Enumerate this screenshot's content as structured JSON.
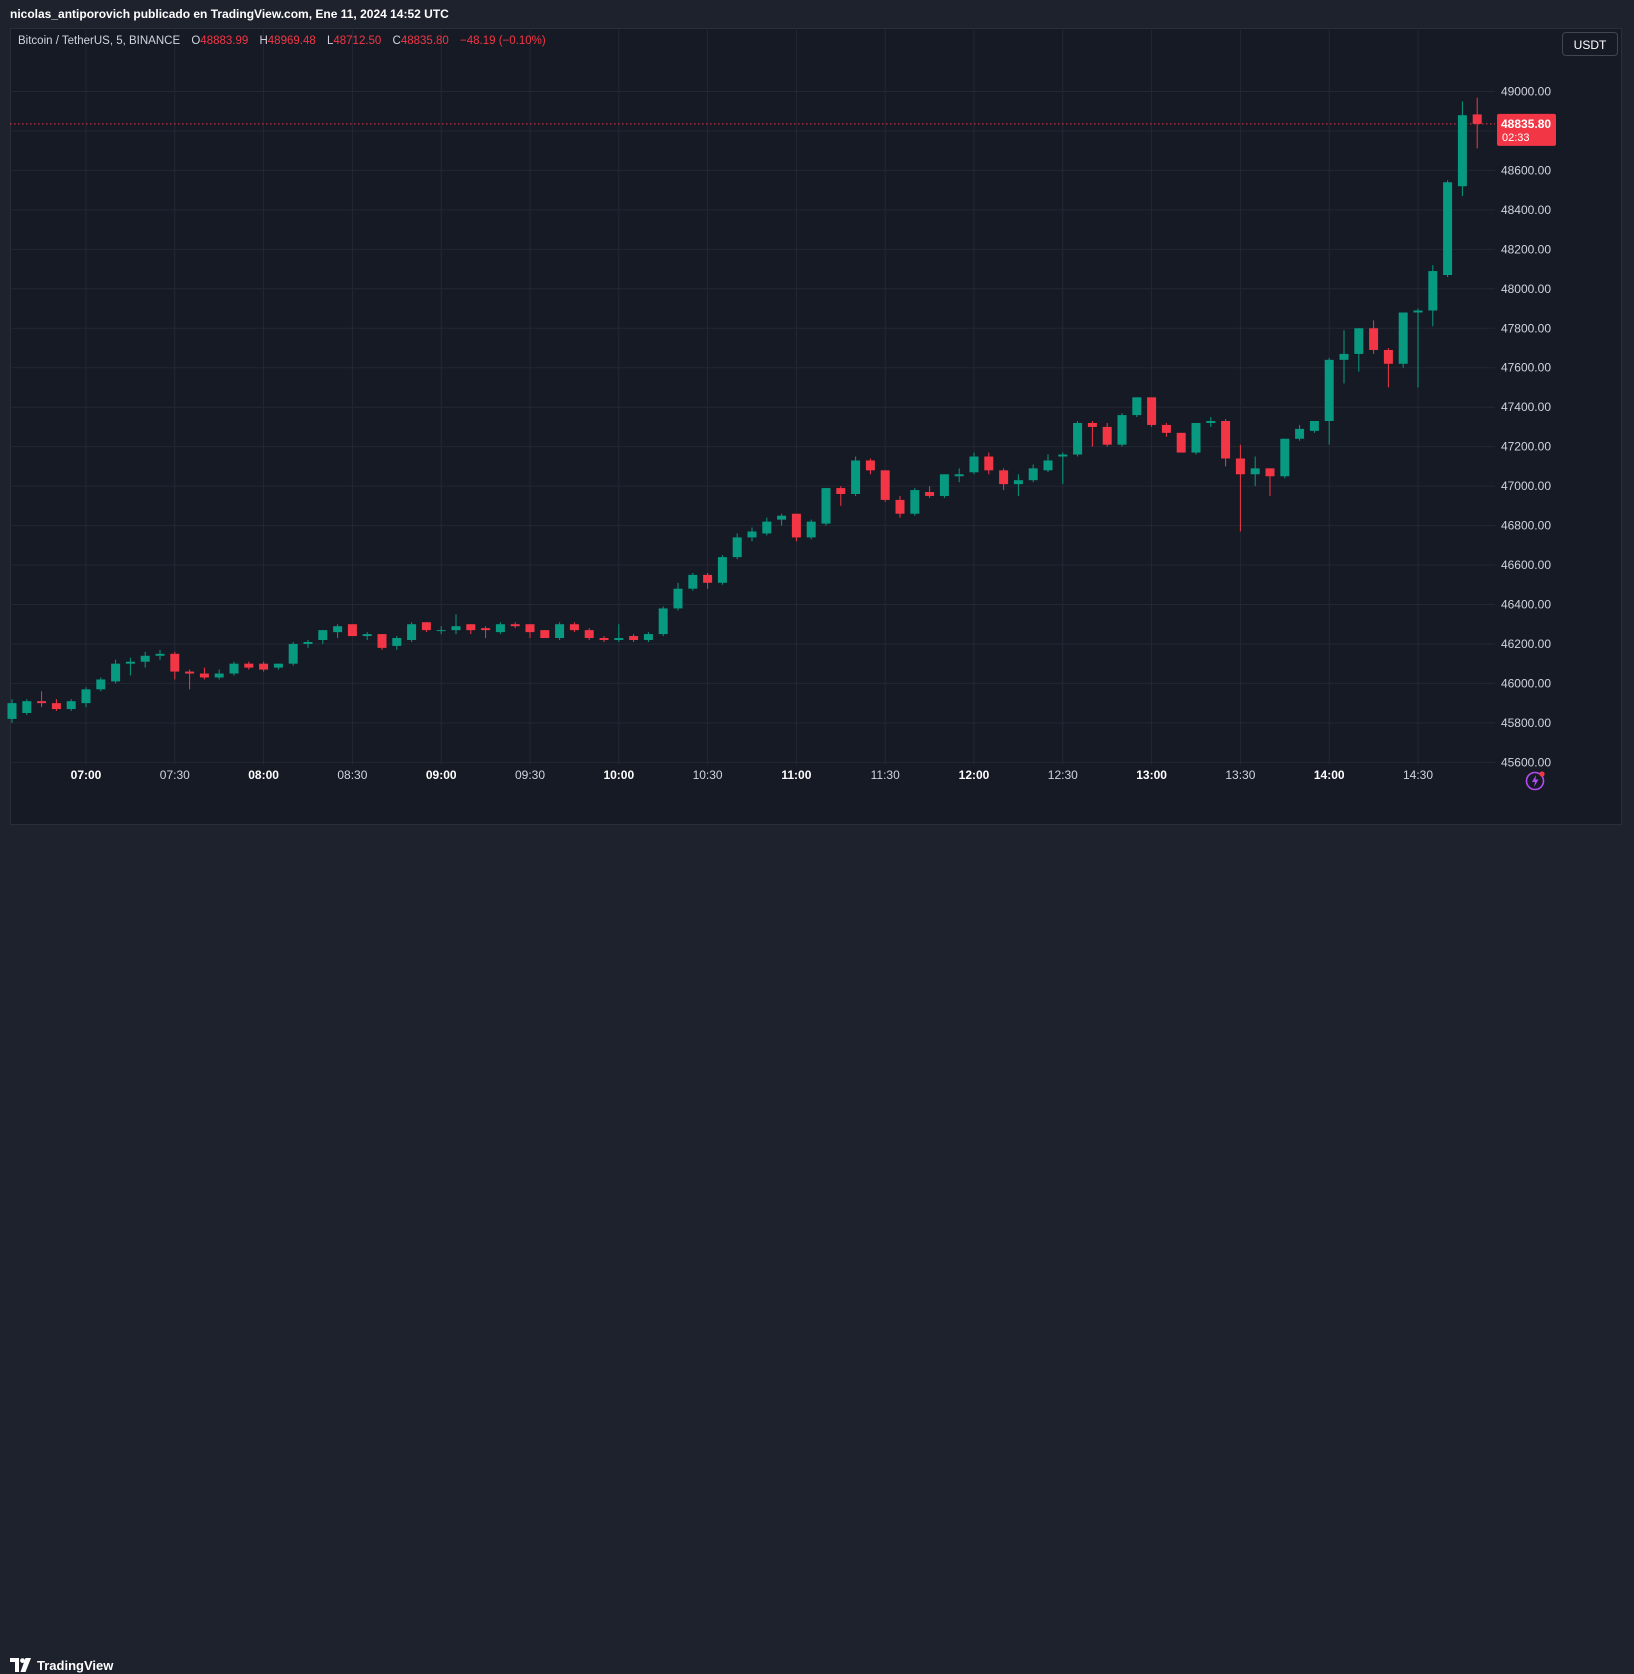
{
  "header": {
    "published": "nicolas_antiporovich publicado en TradingView.com, Ene 11, 2024 14:52 UTC"
  },
  "legend": {
    "symbol": "Bitcoin / TetherUS, 5, BINANCE",
    "o_label": "O",
    "o_value": "48883.99",
    "h_label": "H",
    "h_value": "48969.48",
    "l_label": "L",
    "l_value": "48712.50",
    "c_label": "C",
    "c_value": "48835.80",
    "change": "−48.19 (−0.10%)"
  },
  "currency_button": "USDT",
  "price_tag": {
    "price": "48835.80",
    "countdown": "02:33"
  },
  "footer": {
    "brand": "TradingView"
  },
  "icons": {
    "logo": "tradingview-logo-icon",
    "flash": "lightning-icon"
  },
  "colors": {
    "up": "#089981",
    "down": "#f23645",
    "background": "#161a25",
    "grid": "#232734",
    "text": "#d1d4dc"
  },
  "chart_data": {
    "type": "candlestick",
    "symbol": "BTC/USDT",
    "interval_minutes": 5,
    "exchange": "BINANCE",
    "last_price": 48835.8,
    "ylim": [
      45480,
      49180
    ],
    "y_ticks": [
      45600,
      45800,
      46000,
      46200,
      46400,
      46600,
      46800,
      47000,
      47200,
      47400,
      47600,
      47800,
      48000,
      48200,
      48400,
      48600,
      48800,
      49000
    ],
    "y_tick_labels": [
      "45600.00",
      "45800.00",
      "46000.00",
      "46200.00",
      "46400.00",
      "46600.00",
      "46800.00",
      "47000.00",
      "47200.00",
      "47400.00",
      "47600.00",
      "47800.00",
      "48000.00",
      "48200.00",
      "48400.00",
      "48600.00",
      "48800.00",
      "49000.00"
    ],
    "x_ticks": [
      "07:00",
      "07:30",
      "08:00",
      "08:30",
      "09:00",
      "09:30",
      "10:00",
      "10:30",
      "11:00",
      "11:30",
      "12:00",
      "12:30",
      "13:00",
      "13:30",
      "14:00",
      "14:30"
    ],
    "x_tick_index": [
      5,
      11,
      17,
      23,
      29,
      35,
      41,
      47,
      53,
      59,
      65,
      71,
      77,
      83,
      89,
      95
    ],
    "candles": [
      {
        "o": 45820,
        "h": 45920,
        "l": 45800,
        "c": 45900
      },
      {
        "o": 45850,
        "h": 45920,
        "l": 45840,
        "c": 45910
      },
      {
        "o": 45910,
        "h": 45960,
        "l": 45880,
        "c": 45900
      },
      {
        "o": 45900,
        "h": 45920,
        "l": 45860,
        "c": 45870
      },
      {
        "o": 45870,
        "h": 45920,
        "l": 45860,
        "c": 45910
      },
      {
        "o": 45900,
        "h": 45980,
        "l": 45880,
        "c": 45970
      },
      {
        "o": 45970,
        "h": 46030,
        "l": 45960,
        "c": 46020
      },
      {
        "o": 46010,
        "h": 46120,
        "l": 46000,
        "c": 46100
      },
      {
        "o": 46100,
        "h": 46130,
        "l": 46040,
        "c": 46110
      },
      {
        "o": 46110,
        "h": 46160,
        "l": 46080,
        "c": 46140
      },
      {
        "o": 46140,
        "h": 46170,
        "l": 46120,
        "c": 46150
      },
      {
        "o": 46150,
        "h": 46160,
        "l": 46020,
        "c": 46060
      },
      {
        "o": 46060,
        "h": 46070,
        "l": 45970,
        "c": 46050
      },
      {
        "o": 46050,
        "h": 46080,
        "l": 46020,
        "c": 46030
      },
      {
        "o": 46030,
        "h": 46070,
        "l": 46020,
        "c": 46050
      },
      {
        "o": 46050,
        "h": 46110,
        "l": 46040,
        "c": 46100
      },
      {
        "o": 46100,
        "h": 46110,
        "l": 46070,
        "c": 46080
      },
      {
        "o": 46100,
        "h": 46110,
        "l": 46060,
        "c": 46070
      },
      {
        "o": 46080,
        "h": 46100,
        "l": 46070,
        "c": 46100
      },
      {
        "o": 46100,
        "h": 46210,
        "l": 46090,
        "c": 46200
      },
      {
        "o": 46200,
        "h": 46220,
        "l": 46180,
        "c": 46210
      },
      {
        "o": 46220,
        "h": 46270,
        "l": 46200,
        "c": 46270
      },
      {
        "o": 46260,
        "h": 46300,
        "l": 46230,
        "c": 46290
      },
      {
        "o": 46300,
        "h": 46300,
        "l": 46240,
        "c": 46240
      },
      {
        "o": 46240,
        "h": 46260,
        "l": 46220,
        "c": 46250
      },
      {
        "o": 46250,
        "h": 46250,
        "l": 46170,
        "c": 46180
      },
      {
        "o": 46190,
        "h": 46240,
        "l": 46170,
        "c": 46230
      },
      {
        "o": 46220,
        "h": 46310,
        "l": 46210,
        "c": 46300
      },
      {
        "o": 46310,
        "h": 46310,
        "l": 46260,
        "c": 46270
      },
      {
        "o": 46270,
        "h": 46290,
        "l": 46250,
        "c": 46270
      },
      {
        "o": 46270,
        "h": 46350,
        "l": 46250,
        "c": 46290
      },
      {
        "o": 46300,
        "h": 46300,
        "l": 46250,
        "c": 46270
      },
      {
        "o": 46280,
        "h": 46290,
        "l": 46230,
        "c": 46270
      },
      {
        "o": 46260,
        "h": 46310,
        "l": 46250,
        "c": 46300
      },
      {
        "o": 46300,
        "h": 46310,
        "l": 46280,
        "c": 46290
      },
      {
        "o": 46300,
        "h": 46300,
        "l": 46230,
        "c": 46260
      },
      {
        "o": 46270,
        "h": 46270,
        "l": 46230,
        "c": 46230
      },
      {
        "o": 46230,
        "h": 46310,
        "l": 46220,
        "c": 46300
      },
      {
        "o": 46300,
        "h": 46310,
        "l": 46260,
        "c": 46270
      },
      {
        "o": 46270,
        "h": 46280,
        "l": 46220,
        "c": 46230
      },
      {
        "o": 46230,
        "h": 46240,
        "l": 46210,
        "c": 46220
      },
      {
        "o": 46220,
        "h": 46300,
        "l": 46210,
        "c": 46230
      },
      {
        "o": 46240,
        "h": 46250,
        "l": 46210,
        "c": 46220
      },
      {
        "o": 46220,
        "h": 46260,
        "l": 46210,
        "c": 46250
      },
      {
        "o": 46250,
        "h": 46390,
        "l": 46240,
        "c": 46380
      },
      {
        "o": 46380,
        "h": 46510,
        "l": 46370,
        "c": 46480
      },
      {
        "o": 46480,
        "h": 46560,
        "l": 46470,
        "c": 46550
      },
      {
        "o": 46550,
        "h": 46560,
        "l": 46480,
        "c": 46510
      },
      {
        "o": 46510,
        "h": 46650,
        "l": 46500,
        "c": 46640
      },
      {
        "o": 46640,
        "h": 46760,
        "l": 46630,
        "c": 46740
      },
      {
        "o": 46740,
        "h": 46790,
        "l": 46720,
        "c": 46770
      },
      {
        "o": 46760,
        "h": 46840,
        "l": 46750,
        "c": 46820
      },
      {
        "o": 46830,
        "h": 46860,
        "l": 46800,
        "c": 46850
      },
      {
        "o": 46860,
        "h": 46860,
        "l": 46720,
        "c": 46740
      },
      {
        "o": 46740,
        "h": 46830,
        "l": 46730,
        "c": 46820
      },
      {
        "o": 46810,
        "h": 46990,
        "l": 46800,
        "c": 46990
      },
      {
        "o": 46990,
        "h": 47000,
        "l": 46900,
        "c": 46960
      },
      {
        "o": 46960,
        "h": 47150,
        "l": 46950,
        "c": 47130
      },
      {
        "o": 47130,
        "h": 47140,
        "l": 47060,
        "c": 47080
      },
      {
        "o": 47080,
        "h": 47080,
        "l": 46920,
        "c": 46930
      },
      {
        "o": 46930,
        "h": 46950,
        "l": 46840,
        "c": 46860
      },
      {
        "o": 46860,
        "h": 46990,
        "l": 46850,
        "c": 46980
      },
      {
        "o": 46970,
        "h": 47000,
        "l": 46940,
        "c": 46950
      },
      {
        "o": 46950,
        "h": 47060,
        "l": 46940,
        "c": 47060
      },
      {
        "o": 47050,
        "h": 47090,
        "l": 47020,
        "c": 47060
      },
      {
        "o": 47070,
        "h": 47170,
        "l": 47060,
        "c": 47150
      },
      {
        "o": 47150,
        "h": 47170,
        "l": 47060,
        "c": 47080
      },
      {
        "o": 47080,
        "h": 47090,
        "l": 46980,
        "c": 47010
      },
      {
        "o": 47010,
        "h": 47060,
        "l": 46950,
        "c": 47030
      },
      {
        "o": 47030,
        "h": 47110,
        "l": 47020,
        "c": 47090
      },
      {
        "o": 47080,
        "h": 47160,
        "l": 47070,
        "c": 47130
      },
      {
        "o": 47150,
        "h": 47170,
        "l": 47010,
        "c": 47160
      },
      {
        "o": 47160,
        "h": 47330,
        "l": 47150,
        "c": 47320
      },
      {
        "o": 47320,
        "h": 47330,
        "l": 47200,
        "c": 47300
      },
      {
        "o": 47300,
        "h": 47320,
        "l": 47200,
        "c": 47210
      },
      {
        "o": 47210,
        "h": 47370,
        "l": 47200,
        "c": 47360
      },
      {
        "o": 47360,
        "h": 47450,
        "l": 47350,
        "c": 47450
      },
      {
        "o": 47450,
        "h": 47450,
        "l": 47300,
        "c": 47310
      },
      {
        "o": 47310,
        "h": 47320,
        "l": 47250,
        "c": 47270
      },
      {
        "o": 47270,
        "h": 47270,
        "l": 47170,
        "c": 47170
      },
      {
        "o": 47170,
        "h": 47320,
        "l": 47160,
        "c": 47320
      },
      {
        "o": 47320,
        "h": 47350,
        "l": 47300,
        "c": 47330
      },
      {
        "o": 47330,
        "h": 47340,
        "l": 47100,
        "c": 47140
      },
      {
        "o": 47140,
        "h": 47210,
        "l": 46770,
        "c": 47060
      },
      {
        "o": 47060,
        "h": 47150,
        "l": 47000,
        "c": 47090
      },
      {
        "o": 47090,
        "h": 47090,
        "l": 46950,
        "c": 47050
      },
      {
        "o": 47050,
        "h": 47240,
        "l": 47040,
        "c": 47240
      },
      {
        "o": 47240,
        "h": 47310,
        "l": 47230,
        "c": 47290
      },
      {
        "o": 47280,
        "h": 47330,
        "l": 47270,
        "c": 47330
      },
      {
        "o": 47330,
        "h": 47650,
        "l": 47210,
        "c": 47640
      },
      {
        "o": 47640,
        "h": 47790,
        "l": 47520,
        "c": 47670
      },
      {
        "o": 47670,
        "h": 47800,
        "l": 47580,
        "c": 47800
      },
      {
        "o": 47800,
        "h": 47840,
        "l": 47670,
        "c": 47690
      },
      {
        "o": 47690,
        "h": 47700,
        "l": 47500,
        "c": 47620
      },
      {
        "o": 47620,
        "h": 47880,
        "l": 47600,
        "c": 47880
      },
      {
        "o": 47880,
        "h": 47900,
        "l": 47500,
        "c": 47890
      },
      {
        "o": 47890,
        "h": 48120,
        "l": 47810,
        "c": 48090
      },
      {
        "o": 48070,
        "h": 48550,
        "l": 48060,
        "c": 48540
      },
      {
        "o": 48520,
        "h": 48950,
        "l": 48470,
        "c": 48880
      },
      {
        "o": 48884,
        "h": 48969,
        "l": 48712,
        "c": 48836
      }
    ]
  }
}
